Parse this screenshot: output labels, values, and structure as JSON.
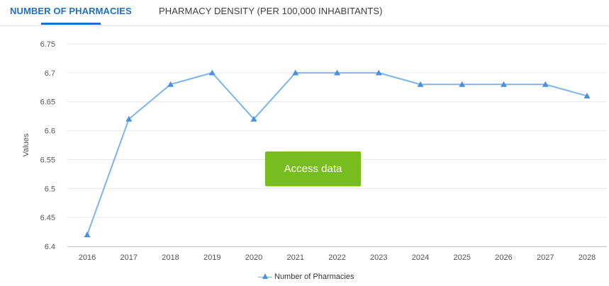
{
  "tabs": {
    "active_label": "NUMBER OF PHARMACIES",
    "inactive_label": "PHARMACY DENSITY (PER 100,000 INHABITANTS)"
  },
  "cta": {
    "label": "Access data"
  },
  "colors": {
    "accent": "#1f6fc5",
    "series": "#7cb5ec",
    "marker": "#4a90e2",
    "cta": "#76bd1d",
    "grid": "#e6e6e6"
  },
  "chart_data": {
    "type": "line",
    "title": "",
    "xlabel": "",
    "ylabel": "Values",
    "categories": [
      "2016",
      "2017",
      "2018",
      "2019",
      "2020",
      "2021",
      "2022",
      "2023",
      "2024",
      "2025",
      "2026",
      "2027",
      "2028"
    ],
    "series": [
      {
        "name": "Number of Pharmacies",
        "values": [
          6.42,
          6.62,
          6.68,
          6.7,
          6.62,
          6.7,
          6.7,
          6.7,
          6.68,
          6.68,
          6.68,
          6.68,
          6.66
        ],
        "marker": "triangle"
      }
    ],
    "yticks": [
      "6.4",
      "6.45",
      "6.5",
      "6.55",
      "6.6",
      "6.65",
      "6.7",
      "6.75"
    ],
    "ylim": [
      6.4,
      6.75
    ],
    "grid": true,
    "legend": "bottom-center"
  }
}
